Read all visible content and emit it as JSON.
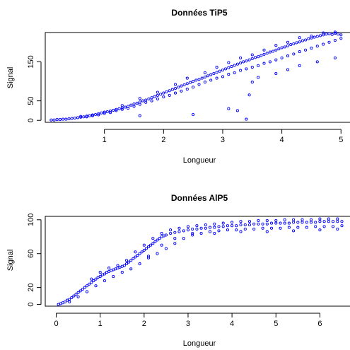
{
  "chart_data": [
    {
      "type": "scatter",
      "title": "Données TiP5",
      "xlabel": "Longueur",
      "ylabel": "Signal",
      "xlim": [
        0.0,
        5.2
      ],
      "ylim": [
        -5,
        225
      ],
      "xticks": [
        1,
        2,
        3,
        4,
        5
      ],
      "yticks": [
        0,
        50,
        150
      ],
      "grid": false,
      "legend": "none",
      "marker_color": "#0000ff",
      "points": [
        [
          0.1,
          1
        ],
        [
          0.15,
          1
        ],
        [
          0.2,
          2
        ],
        [
          0.25,
          2
        ],
        [
          0.3,
          3
        ],
        [
          0.35,
          3
        ],
        [
          0.4,
          4
        ],
        [
          0.45,
          5
        ],
        [
          0.5,
          6
        ],
        [
          0.55,
          7
        ],
        [
          0.6,
          8
        ],
        [
          0.65,
          9
        ],
        [
          0.7,
          11
        ],
        [
          0.75,
          12
        ],
        [
          0.8,
          14
        ],
        [
          0.85,
          15
        ],
        [
          0.9,
          17
        ],
        [
          0.95,
          19
        ],
        [
          1.0,
          21
        ],
        [
          1.05,
          22
        ],
        [
          1.1,
          24
        ],
        [
          1.15,
          26
        ],
        [
          1.2,
          28
        ],
        [
          1.25,
          30
        ],
        [
          1.3,
          32
        ],
        [
          1.35,
          34
        ],
        [
          1.4,
          36
        ],
        [
          1.45,
          39
        ],
        [
          1.5,
          42
        ],
        [
          1.55,
          44
        ],
        [
          1.6,
          47
        ],
        [
          1.65,
          50
        ],
        [
          1.7,
          52
        ],
        [
          1.75,
          55
        ],
        [
          1.8,
          58
        ],
        [
          1.85,
          61
        ],
        [
          1.9,
          64
        ],
        [
          1.95,
          67
        ],
        [
          2.0,
          70
        ],
        [
          2.05,
          73
        ],
        [
          2.1,
          76
        ],
        [
          2.15,
          79
        ],
        [
          2.2,
          82
        ],
        [
          2.25,
          85
        ],
        [
          2.3,
          88
        ],
        [
          2.35,
          91
        ],
        [
          2.4,
          94
        ],
        [
          2.45,
          97
        ],
        [
          2.5,
          100
        ],
        [
          2.55,
          103
        ],
        [
          2.6,
          105
        ],
        [
          2.65,
          108
        ],
        [
          2.7,
          111
        ],
        [
          2.75,
          114
        ],
        [
          2.8,
          117
        ],
        [
          2.85,
          120
        ],
        [
          2.9,
          123
        ],
        [
          2.95,
          126
        ],
        [
          3.0,
          129
        ],
        [
          3.05,
          132
        ],
        [
          3.1,
          135
        ],
        [
          3.15,
          138
        ],
        [
          3.2,
          141
        ],
        [
          3.25,
          144
        ],
        [
          3.3,
          147
        ],
        [
          3.35,
          150
        ],
        [
          3.4,
          152
        ],
        [
          3.45,
          155
        ],
        [
          3.5,
          158
        ],
        [
          3.55,
          161
        ],
        [
          3.6,
          163
        ],
        [
          3.65,
          166
        ],
        [
          3.7,
          169
        ],
        [
          3.75,
          172
        ],
        [
          3.8,
          175
        ],
        [
          3.85,
          177
        ],
        [
          3.9,
          180
        ],
        [
          3.95,
          183
        ],
        [
          4.0,
          186
        ],
        [
          4.05,
          188
        ],
        [
          4.1,
          191
        ],
        [
          4.15,
          194
        ],
        [
          4.2,
          196
        ],
        [
          4.25,
          199
        ],
        [
          4.3,
          201
        ],
        [
          4.35,
          204
        ],
        [
          4.4,
          206
        ],
        [
          4.45,
          209
        ],
        [
          4.5,
          211
        ],
        [
          4.55,
          213
        ],
        [
          4.6,
          215
        ],
        [
          4.65,
          217
        ],
        [
          4.7,
          219
        ],
        [
          4.75,
          221
        ],
        [
          4.8,
          222
        ],
        [
          4.85,
          220
        ],
        [
          4.9,
          223
        ],
        [
          4.95,
          221
        ],
        [
          5.0,
          219
        ],
        [
          0.6,
          10
        ],
        [
          0.7,
          9
        ],
        [
          0.8,
          12
        ],
        [
          0.9,
          14
        ],
        [
          1.0,
          18
        ],
        [
          1.1,
          20
        ],
        [
          1.2,
          25
        ],
        [
          1.3,
          28
        ],
        [
          1.4,
          31
        ],
        [
          1.5,
          36
        ],
        [
          1.6,
          41
        ],
        [
          1.7,
          46
        ],
        [
          1.8,
          50
        ],
        [
          1.9,
          55
        ],
        [
          2.0,
          60
        ],
        [
          2.1,
          64
        ],
        [
          2.2,
          70
        ],
        [
          2.3,
          75
        ],
        [
          2.4,
          80
        ],
        [
          2.5,
          85
        ],
        [
          2.6,
          92
        ],
        [
          2.7,
          98
        ],
        [
          2.8,
          103
        ],
        [
          2.9,
          108
        ],
        [
          3.0,
          112
        ],
        [
          3.1,
          118
        ],
        [
          3.2,
          122
        ],
        [
          3.3,
          128
        ],
        [
          3.4,
          132
        ],
        [
          3.5,
          136
        ],
        [
          3.6,
          140
        ],
        [
          3.7,
          146
        ],
        [
          3.8,
          150
        ],
        [
          3.9,
          155
        ],
        [
          4.0,
          160
        ],
        [
          4.1,
          165
        ],
        [
          4.2,
          170
        ],
        [
          4.3,
          176
        ],
        [
          4.4,
          180
        ],
        [
          4.5,
          185
        ],
        [
          4.6,
          190
        ],
        [
          4.7,
          195
        ],
        [
          4.8,
          200
        ],
        [
          4.9,
          205
        ],
        [
          5.0,
          210
        ],
        [
          1.3,
          38
        ],
        [
          1.6,
          56
        ],
        [
          1.9,
          72
        ],
        [
          2.2,
          92
        ],
        [
          2.4,
          108
        ],
        [
          2.7,
          122
        ],
        [
          2.9,
          136
        ],
        [
          3.1,
          148
        ],
        [
          3.3,
          160
        ],
        [
          3.5,
          168
        ],
        [
          3.7,
          180
        ],
        [
          3.9,
          192
        ],
        [
          4.1,
          200
        ],
        [
          4.3,
          212
        ],
        [
          4.5,
          216
        ],
        [
          4.7,
          224
        ],
        [
          4.9,
          226
        ],
        [
          1.6,
          12
        ],
        [
          2.5,
          15
        ],
        [
          3.1,
          30
        ],
        [
          3.25,
          25
        ],
        [
          3.4,
          3
        ],
        [
          3.45,
          65
        ],
        [
          3.5,
          98
        ],
        [
          3.6,
          110
        ],
        [
          3.9,
          120
        ],
        [
          4.1,
          130
        ],
        [
          4.3,
          140
        ],
        [
          4.6,
          150
        ],
        [
          4.9,
          160
        ]
      ]
    },
    {
      "type": "scatter",
      "title": "Données AlP5",
      "xlabel": "Longueur",
      "ylabel": "Signal",
      "xlim": [
        -0.25,
        6.75
      ],
      "ylim": [
        -2,
        104
      ],
      "xticks": [
        0,
        1,
        2,
        3,
        4,
        5,
        6
      ],
      "yticks": [
        0,
        20,
        60,
        100
      ],
      "grid": false,
      "legend": "none",
      "marker_color": "#0000ff",
      "points": [
        [
          0.05,
          0
        ],
        [
          0.1,
          1
        ],
        [
          0.15,
          2
        ],
        [
          0.2,
          3
        ],
        [
          0.25,
          5
        ],
        [
          0.3,
          6
        ],
        [
          0.35,
          8
        ],
        [
          0.4,
          10
        ],
        [
          0.45,
          12
        ],
        [
          0.5,
          14
        ],
        [
          0.55,
          16
        ],
        [
          0.6,
          18
        ],
        [
          0.65,
          20
        ],
        [
          0.7,
          22
        ],
        [
          0.75,
          24
        ],
        [
          0.8,
          26
        ],
        [
          0.85,
          28
        ],
        [
          0.9,
          30
        ],
        [
          0.95,
          32
        ],
        [
          1.0,
          33
        ],
        [
          1.05,
          35
        ],
        [
          1.1,
          36
        ],
        [
          1.15,
          38
        ],
        [
          1.2,
          39
        ],
        [
          1.25,
          40
        ],
        [
          1.3,
          41
        ],
        [
          1.35,
          42
        ],
        [
          1.4,
          43
        ],
        [
          1.45,
          44
        ],
        [
          1.5,
          45
        ],
        [
          1.55,
          46
        ],
        [
          1.6,
          48
        ],
        [
          1.65,
          50
        ],
        [
          1.7,
          52
        ],
        [
          1.75,
          54
        ],
        [
          1.8,
          56
        ],
        [
          1.85,
          58
        ],
        [
          1.9,
          60
        ],
        [
          1.95,
          62
        ],
        [
          2.0,
          64
        ],
        [
          2.05,
          66
        ],
        [
          2.1,
          68
        ],
        [
          2.15,
          70
        ],
        [
          2.2,
          72
        ],
        [
          2.25,
          74
        ],
        [
          2.3,
          76
        ],
        [
          2.35,
          78
        ],
        [
          2.4,
          80
        ],
        [
          2.45,
          81
        ],
        [
          2.5,
          82
        ],
        [
          2.6,
          84
        ],
        [
          2.7,
          85
        ],
        [
          2.8,
          86
        ],
        [
          2.9,
          87
        ],
        [
          3.0,
          88
        ],
        [
          3.1,
          89
        ],
        [
          3.2,
          89
        ],
        [
          3.3,
          90
        ],
        [
          3.4,
          90
        ],
        [
          3.5,
          91
        ],
        [
          3.6,
          91
        ],
        [
          3.7,
          92
        ],
        [
          3.8,
          92
        ],
        [
          3.9,
          93
        ],
        [
          4.0,
          93
        ],
        [
          4.1,
          93
        ],
        [
          4.2,
          94
        ],
        [
          4.3,
          94
        ],
        [
          4.4,
          94
        ],
        [
          4.5,
          95
        ],
        [
          4.6,
          95
        ],
        [
          4.7,
          95
        ],
        [
          4.8,
          95
        ],
        [
          4.9,
          96
        ],
        [
          5.0,
          96
        ],
        [
          5.1,
          96
        ],
        [
          5.2,
          96
        ],
        [
          5.3,
          96
        ],
        [
          5.4,
          97
        ],
        [
          5.5,
          97
        ],
        [
          5.6,
          97
        ],
        [
          5.7,
          97
        ],
        [
          5.8,
          97
        ],
        [
          5.9,
          97
        ],
        [
          6.0,
          98
        ],
        [
          6.1,
          98
        ],
        [
          6.2,
          98
        ],
        [
          6.3,
          98
        ],
        [
          6.4,
          98
        ],
        [
          6.5,
          98
        ],
        [
          0.3,
          3
        ],
        [
          0.5,
          9
        ],
        [
          0.7,
          15
        ],
        [
          0.9,
          22
        ],
        [
          1.1,
          28
        ],
        [
          1.3,
          33
        ],
        [
          1.5,
          38
        ],
        [
          1.7,
          42
        ],
        [
          1.9,
          48
        ],
        [
          2.1,
          55
        ],
        [
          2.3,
          60
        ],
        [
          2.5,
          66
        ],
        [
          2.7,
          72
        ],
        [
          2.9,
          78
        ],
        [
          3.1,
          82
        ],
        [
          3.3,
          84
        ],
        [
          3.5,
          86
        ],
        [
          3.7,
          87
        ],
        [
          3.9,
          88
        ],
        [
          4.1,
          88
        ],
        [
          4.3,
          89
        ],
        [
          4.5,
          89
        ],
        [
          4.7,
          90
        ],
        [
          4.9,
          90
        ],
        [
          5.1,
          90
        ],
        [
          5.3,
          91
        ],
        [
          5.5,
          91
        ],
        [
          5.7,
          91
        ],
        [
          5.9,
          92
        ],
        [
          6.1,
          92
        ],
        [
          6.3,
          92
        ],
        [
          6.5,
          93
        ],
        [
          0.8,
          30
        ],
        [
          1.0,
          38
        ],
        [
          1.2,
          43
        ],
        [
          1.4,
          46
        ],
        [
          1.6,
          52
        ],
        [
          1.8,
          62
        ],
        [
          2.0,
          70
        ],
        [
          2.2,
          78
        ],
        [
          2.4,
          84
        ],
        [
          2.6,
          88
        ],
        [
          2.8,
          90
        ],
        [
          3.0,
          92
        ],
        [
          3.2,
          93
        ],
        [
          3.4,
          94
        ],
        [
          3.6,
          95
        ],
        [
          3.8,
          96
        ],
        [
          4.0,
          97
        ],
        [
          4.2,
          98
        ],
        [
          4.4,
          98
        ],
        [
          4.6,
          99
        ],
        [
          4.8,
          99
        ],
        [
          5.0,
          99
        ],
        [
          5.2,
          100
        ],
        [
          5.4,
          100
        ],
        [
          5.6,
          100
        ],
        [
          5.8,
          100
        ],
        [
          6.0,
          101
        ],
        [
          6.2,
          101
        ],
        [
          6.4,
          101
        ],
        [
          2.1,
          57
        ],
        [
          2.4,
          70
        ],
        [
          2.7,
          78
        ],
        [
          3.1,
          84
        ],
        [
          3.6,
          84
        ],
        [
          4.2,
          86
        ],
        [
          4.8,
          86
        ],
        [
          5.4,
          87
        ],
        [
          6.0,
          88
        ],
        [
          6.4,
          89
        ]
      ]
    }
  ]
}
